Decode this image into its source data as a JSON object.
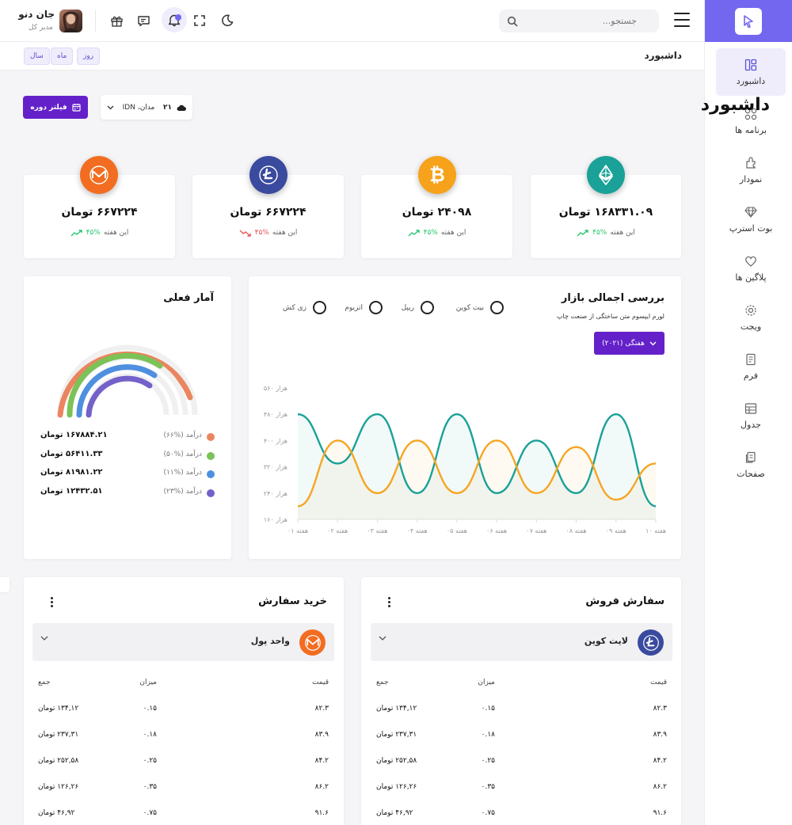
{
  "header": {
    "search_placeholder": "جستجو...",
    "user_name": "جان دنو",
    "user_role": "مدیر کل"
  },
  "sidebar": {
    "items": [
      {
        "label": "داشبورد",
        "icon": "dashboard-icon",
        "active": true
      },
      {
        "label": "برنامه ها",
        "icon": "apps-icon"
      },
      {
        "label": "نمودار",
        "icon": "chart-icon"
      },
      {
        "label": "بوت استرپ",
        "icon": "diamond-icon"
      },
      {
        "label": "پلاگین ها",
        "icon": "heart-icon"
      },
      {
        "label": "ویجت",
        "icon": "gear-icon"
      },
      {
        "label": "فرم",
        "icon": "form-icon"
      },
      {
        "label": "جدول",
        "icon": "table-icon"
      },
      {
        "label": "صفحات",
        "icon": "pages-icon"
      }
    ]
  },
  "breadcrumb": {
    "title": "داشبورد"
  },
  "ranges": [
    "سال",
    "ماه",
    "روز"
  ],
  "page": {
    "title": "داشبورد",
    "filter_label": "فیلتر دوره",
    "weather": {
      "temp": "۲۱",
      "location": "مدان، IDN"
    }
  },
  "stats": [
    {
      "amount": "۱۶۸۳۳۱.۰۹ تومان",
      "pct": "۴۵%",
      "period": "این هفته",
      "trend": "up",
      "color": "#1aa198",
      "coin": "ethereum-icon"
    },
    {
      "amount": "۲۴۰۹۸ تومان",
      "pct": "۴۵%",
      "period": "این هفته",
      "trend": "up",
      "color": "#f7a21b",
      "coin": "bitcoin-icon"
    },
    {
      "amount": "۶۶۷۲۲۴ تومان",
      "pct": "۴۵%",
      "period": "این هفته",
      "trend": "down",
      "color": "#3a4a9e",
      "coin": "litecoin-icon"
    },
    {
      "amount": "۶۶۷۲۲۴ تومان",
      "pct": "۴۵%",
      "period": "این هفته",
      "trend": "up",
      "color": "#f26d21",
      "coin": "monero-icon"
    }
  ],
  "market": {
    "title": "بررسی اجمالی بازار",
    "subtitle": "لورم ایپسوم متن ساختگی از صنعت چاپ",
    "options": [
      "بیت کوین",
      "ریپل",
      "اتریوم",
      "زی کش"
    ],
    "week_label": "هفتگی (۲۰۲۱)"
  },
  "chart_data": {
    "type": "line",
    "categories": [
      "هفته ۰۱",
      "هفته ۰۲",
      "هفته ۰۳",
      "هفته ۰۴",
      "هفته ۰۵",
      "هفته ۰۶",
      "هفته ۰۷",
      "هفته ۰۸",
      "هفته ۰۹",
      "هفته ۱۰"
    ],
    "y_ticks": [
      "۱۶۰ هزار",
      "۲۴۰ هزار",
      "۳۲۰ هزار",
      "۴۰۰ هزار",
      "۴۸۰ هزار",
      "۵۶۰ هزار"
    ],
    "ylim": [
      160,
      560
    ],
    "series": [
      {
        "color": "#1aa198",
        "values": [
          480,
          330,
          480,
          240,
          480,
          240,
          400,
          240,
          480,
          200
        ]
      },
      {
        "color": "#f5a623",
        "values": [
          200,
          400,
          240,
          400,
          240,
          400,
          240,
          380,
          220,
          330
        ]
      }
    ]
  },
  "stats_now": {
    "title": "آمار فعلی",
    "rows": [
      {
        "label": "درآمد (%۶۶)",
        "value": "۱۶۷۸۸۴.۲۱ تومان",
        "color": "#ea8560"
      },
      {
        "label": "درآمد (%۵۰)",
        "value": "۵۶۴۱۱.۳۳ تومان",
        "color": "#7bc257"
      },
      {
        "label": "درآمد (%۱۱)",
        "value": "۸۱۹۸۱.۲۲ تومان",
        "color": "#4f8fe0"
      },
      {
        "label": "درآمد (%۲۳)",
        "value": "۱۲۴۳۲.۵۱ تومان",
        "color": "#7461c9"
      }
    ]
  },
  "sell_order": {
    "title": "سفارش فروش",
    "currency": "لایت کوین",
    "headers": [
      "قیمت",
      "میزان",
      "جمع"
    ],
    "rows": [
      [
        "۸۲.۳",
        "۰.۱۵",
        "۱۳۴,۱۲ تومان"
      ],
      [
        "۸۳.۹",
        "۰.۱۸",
        "۲۳۷,۳۱ تومان"
      ],
      [
        "۸۴.۲",
        "۰.۲۵",
        "۲۵۲,۵۸ تومان"
      ],
      [
        "۸۶.۲",
        "۰.۳۵",
        "۱۲۶,۲۶ تومان"
      ],
      [
        "۹۱.۶",
        "۰.۷۵",
        "۴۶,۹۲ تومان"
      ]
    ]
  },
  "buy_order": {
    "title": "خرید سفارش",
    "currency": "واحد پول",
    "headers": [
      "قیمت",
      "میزان",
      "جمع"
    ],
    "rows": [
      [
        "۸۲.۳",
        "۰.۱۵",
        "۱۳۴,۱۲ تومان"
      ],
      [
        "۸۳.۹",
        "۰.۱۸",
        "۲۳۷,۳۱ تومان"
      ],
      [
        "۸۴.۲",
        "۰.۲۵",
        "۲۵۲,۵۸ تومان"
      ],
      [
        "۸۶.۲",
        "۰.۳۵",
        "۱۲۶,۲۶ تومان"
      ],
      [
        "۹۱.۶",
        "۰.۷۵",
        "۴۶,۹۲ تومان"
      ]
    ]
  }
}
